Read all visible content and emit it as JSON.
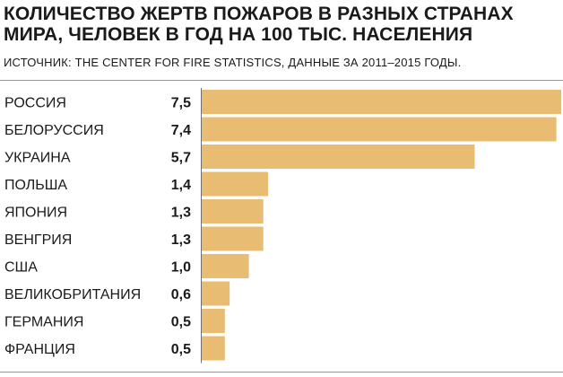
{
  "chart_data": {
    "type": "bar",
    "orientation": "horizontal",
    "title": "КОЛИЧЕСТВО ЖЕРТВ ПОЖАРОВ В РАЗНЫХ СТРАНАХ МИРА, ЧЕЛОВЕК В ГОД НА 100 ТЫС. НАСЕЛЕНИЯ",
    "subtitle": "ИСТОЧНИК: THE CENTER FOR FIRE STATISTICS, ДАННЫЕ ЗА 2011–2015 ГОДЫ.",
    "categories": [
      "РОССИЯ",
      "БЕЛОРУССИЯ",
      "УКРАИНА",
      "ПОЛЬША",
      "ЯПОНИЯ",
      "ВЕНГРИЯ",
      "США",
      "ВЕЛИКОБРИТАНИЯ",
      "ГЕРМАНИЯ",
      "ФРАНЦИЯ"
    ],
    "values": [
      7.5,
      7.4,
      5.7,
      1.4,
      1.3,
      1.3,
      1.0,
      0.6,
      0.5,
      0.5
    ],
    "value_labels": [
      "7,5",
      "7,4",
      "5,7",
      "1,4",
      "1,3",
      "1,3",
      "1,0",
      "0,6",
      "0,5",
      "0,5"
    ],
    "xlim": [
      0,
      7.5
    ],
    "grid": false,
    "bar_color": "#e8bc72",
    "axis_color": "#6e6e6e"
  }
}
